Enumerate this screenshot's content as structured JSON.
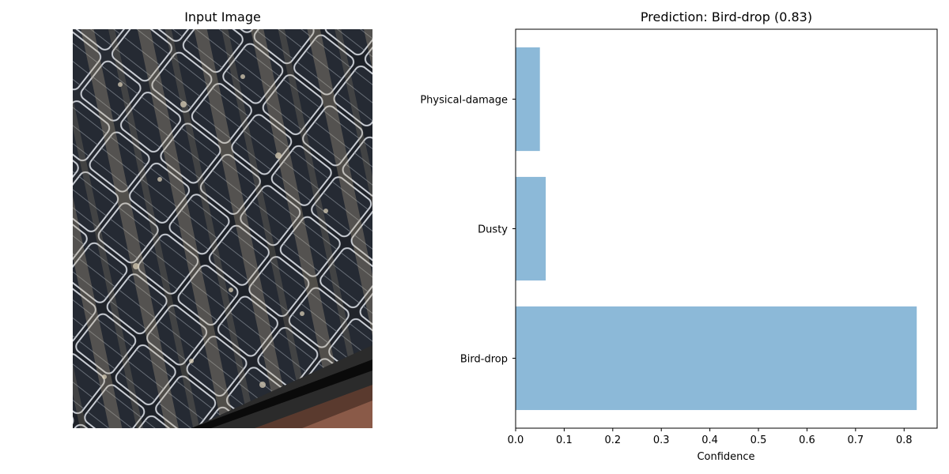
{
  "image_panel": {
    "title": "Input Image",
    "icon": "solar-panel-photo"
  },
  "chart_data": {
    "type": "bar",
    "orientation": "horizontal",
    "title": "Prediction: Bird-drop (0.83)",
    "xlabel": "Confidence",
    "ylabel": "",
    "categories": [
      "Bird-drop",
      "Dusty",
      "Physical-damage"
    ],
    "values": [
      0.826,
      0.062,
      0.05
    ],
    "xlim": [
      0,
      0.868
    ],
    "xticks": [
      0.0,
      0.1,
      0.2,
      0.3,
      0.4,
      0.5,
      0.6,
      0.7,
      0.8
    ],
    "xtick_labels": [
      "0.0",
      "0.1",
      "0.2",
      "0.3",
      "0.4",
      "0.5",
      "0.6",
      "0.7",
      "0.8"
    ],
    "bar_color": "#8cb9d8",
    "grid": false,
    "legend": "none"
  }
}
